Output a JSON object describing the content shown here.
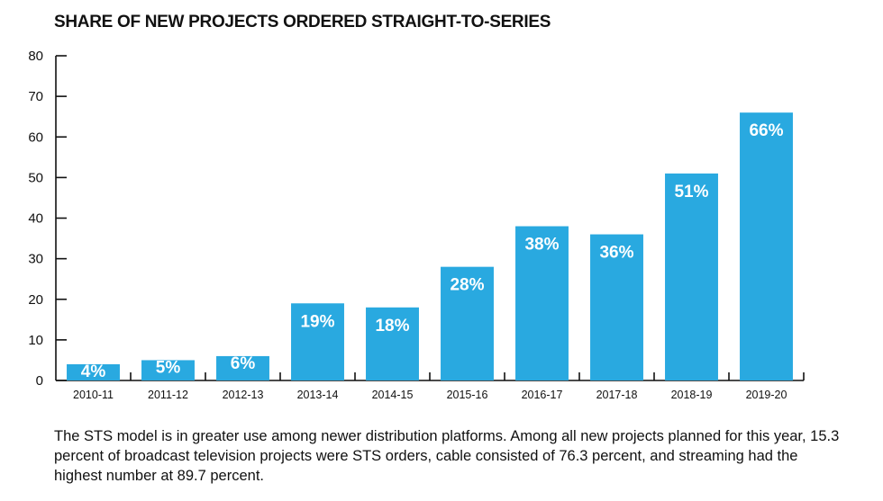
{
  "chart_data": {
    "type": "bar",
    "title": "SHARE OF NEW PROJECTS ORDERED STRAIGHT-TO-SERIES",
    "categories": [
      "2010-11",
      "2011-12",
      "2012-13",
      "2013-14",
      "2014-15",
      "2015-16",
      "2016-17",
      "2017-18",
      "2018-19",
      "2019-20"
    ],
    "values": [
      4,
      5,
      6,
      19,
      18,
      28,
      38,
      36,
      51,
      66
    ],
    "data_labels": [
      "4%",
      "5%",
      "6%",
      "19%",
      "18%",
      "28%",
      "38%",
      "36%",
      "51%",
      "66%"
    ],
    "ylim": [
      0,
      80
    ],
    "yticks": [
      0,
      10,
      20,
      30,
      40,
      50,
      60,
      70,
      80
    ],
    "xlabel": "",
    "ylabel": "",
    "grid": false,
    "bar_color": "#29a9e0"
  },
  "caption": "The STS model is in greater use among newer distribution platforms. Among all new projects planned for this year, 15.3 percent of broadcast television projects were STS orders, cable consisted of 76.3 percent, and streaming had the highest number at 89.7 percent."
}
